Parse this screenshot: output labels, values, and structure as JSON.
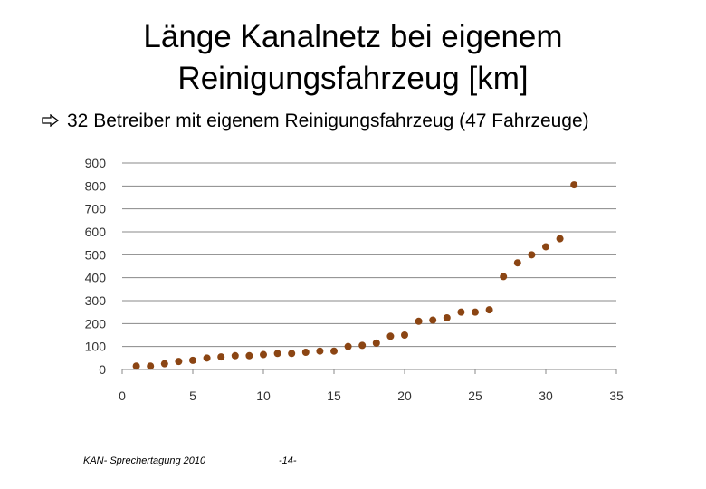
{
  "title": {
    "line1": "Länge Kanalnetz bei eigenem",
    "line2": "Reinigungsfahrzeug [km]"
  },
  "bullet": {
    "icon": "hollow-right-arrow-icon",
    "text": "32 Betreiber mit eigenem Reinigungsfahrzeug (47 Fahrzeuge)"
  },
  "footer": {
    "left": "KAN- Sprechertagung 2010",
    "page": "-14-"
  },
  "colors": {
    "marker": "#8B4513",
    "grid": "#888888",
    "text": "#000000"
  },
  "chart_data": {
    "type": "scatter",
    "title": "",
    "xlabel": "",
    "ylabel": "",
    "xlim": [
      0,
      35
    ],
    "ylim": [
      0,
      900
    ],
    "xticks": [
      0,
      5,
      10,
      15,
      20,
      25,
      30,
      35
    ],
    "yticks": [
      0,
      100,
      200,
      300,
      400,
      500,
      600,
      700,
      800,
      900
    ],
    "grid": "horizontal",
    "legend": "none",
    "series": [
      {
        "x": [
          1,
          2,
          3,
          4,
          5,
          6,
          7,
          8,
          9,
          10,
          11,
          12,
          13,
          14,
          15,
          16,
          17,
          18,
          19,
          20,
          21,
          22,
          23,
          24,
          25,
          26,
          27,
          28,
          29,
          30,
          31,
          32
        ],
        "y": [
          15,
          15,
          25,
          35,
          40,
          50,
          55,
          60,
          60,
          65,
          70,
          70,
          75,
          80,
          80,
          100,
          105,
          115,
          145,
          150,
          210,
          215,
          225,
          250,
          250,
          260,
          405,
          465,
          500,
          535,
          570,
          805
        ]
      }
    ]
  }
}
